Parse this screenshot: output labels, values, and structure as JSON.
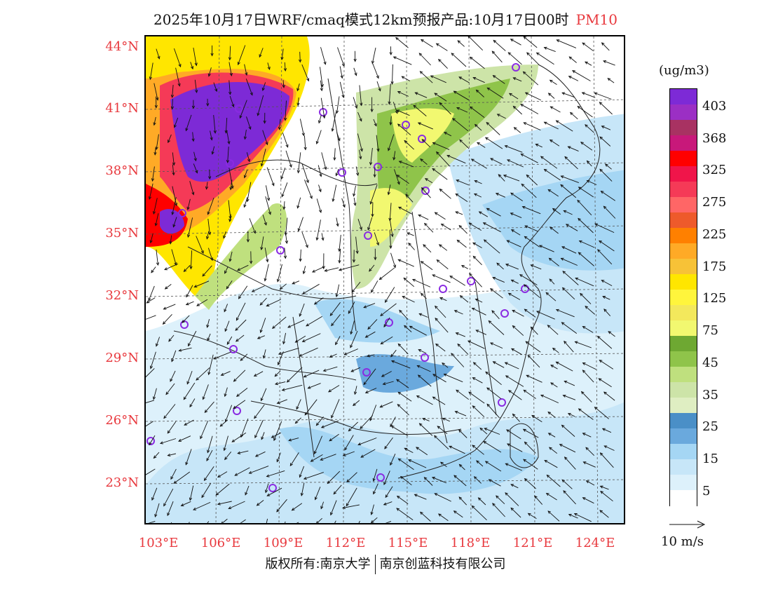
{
  "title": {
    "main": "2025年10月17日WRF/cmaq模式12km预报产品:10月17日00时",
    "pollutant": "PM10"
  },
  "axes": {
    "lat_labels": [
      "44°N",
      "41°N",
      "38°N",
      "35°N",
      "32°N",
      "29°N",
      "26°N",
      "23°N"
    ],
    "lon_labels": [
      "103°E",
      "106°E",
      "109°E",
      "112°E",
      "115°E",
      "118°E",
      "121°E",
      "124°E"
    ]
  },
  "colorbar": {
    "unit": "(ug/m3)",
    "labels": [
      "403",
      "368",
      "325",
      "275",
      "225",
      "175",
      "125",
      "75",
      "45",
      "35",
      "25",
      "15",
      "5"
    ],
    "colors": [
      "#7d2ad6",
      "#9b2fc4",
      "#a83262",
      "#c8187a",
      "#ff0000",
      "#f0154a",
      "#f53a57",
      "#ff6666",
      "#ee5a2b",
      "#ff8000",
      "#ffaa26",
      "#f7c237",
      "#ffe600",
      "#fff53c",
      "#f3e85c",
      "#f2f870",
      "#6ea832",
      "#8fc44a",
      "#bfe07e",
      "#cde4a8",
      "#dfeec2",
      "#4a8fc7",
      "#6aa9dd",
      "#a5d6f4",
      "#c7e6f8",
      "#ddf1fb",
      "#ffffff"
    ]
  },
  "wind_reference": {
    "label": "10 m/s"
  },
  "footer": {
    "copyright": "版权所有:南京大学",
    "company": "南京创蓝科技有限公司"
  }
}
